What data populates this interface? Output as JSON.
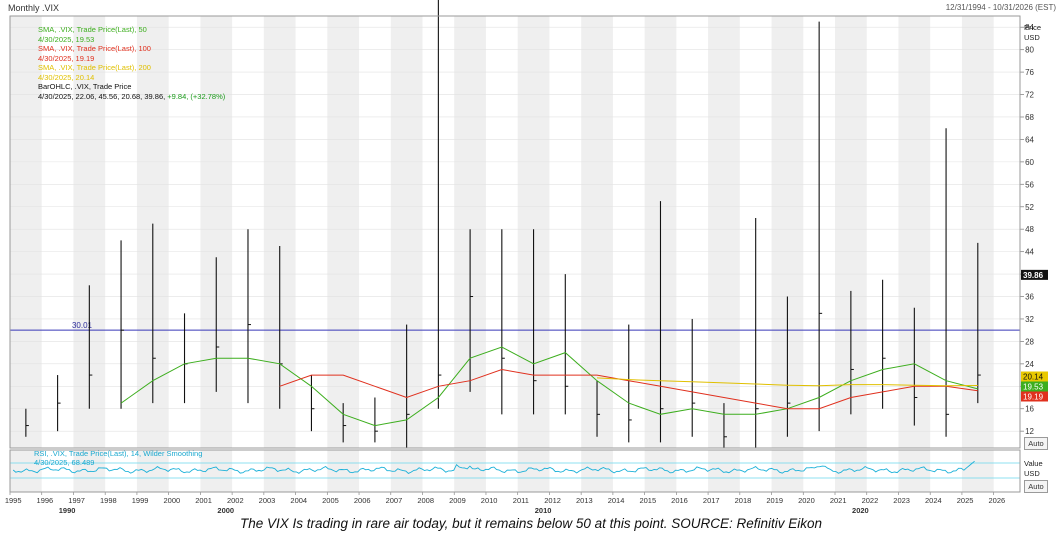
{
  "header": {
    "title": "Monthly .VIX",
    "date_range": "12/31/1994 - 10/31/2026 (EST)"
  },
  "legend": [
    {
      "label": "SMA, .VIX, Trade Price(Last),  50",
      "value": "4/30/2025, 19.53",
      "color": "#3dae1e"
    },
    {
      "label": "SMA, .VIX, Trade Price(Last),  100",
      "value": "4/30/2025, 19.19",
      "color": "#e0301e"
    },
    {
      "label": "SMA, .VIX, Trade Price(Last),  200",
      "value": "4/30/2025, 20.14",
      "color": "#e0c000"
    },
    {
      "label": "BarOHLC, .VIX, Trade Price",
      "value_main": "4/30/2025, 22.06, 45.56, 20.68, 39.86, ",
      "value_change": "+9.84, (+32.78%)",
      "color": "#111111"
    }
  ],
  "rsi_legend": {
    "label": "RSI, .VIX, Trade Price(Last),  14, Wilder Smoothing",
    "value": "4/30/2025, 68.489"
  },
  "price_axis": {
    "title": "Price",
    "unit": "USD",
    "ticks": [
      "84",
      "80",
      "76",
      "72",
      "68",
      "64",
      "60",
      "56",
      "52",
      "48",
      "44",
      "40",
      "36",
      "32",
      "28",
      "24",
      "20",
      "16",
      "12"
    ],
    "auto_label": "Auto"
  },
  "rsi_axis": {
    "title": "Value",
    "unit": "USD",
    "auto_label": "Auto"
  },
  "badges": {
    "last": "39.86",
    "sma200": "20.14",
    "sma50": "19.53",
    "sma100": "19.19"
  },
  "reference_line_label": "30.01",
  "x_axis": {
    "years": [
      "1995",
      "1996",
      "1997",
      "1998",
      "1999",
      "2000",
      "2001",
      "2002",
      "2003",
      "2004",
      "2005",
      "2006",
      "2007",
      "2008",
      "2009",
      "2010",
      "2011",
      "2012",
      "2013",
      "2014",
      "2015",
      "2016",
      "2017",
      "2018",
      "2019",
      "2020",
      "2021",
      "2022",
      "2023",
      "2024",
      "2025",
      "2026"
    ],
    "decades": [
      "1990",
      "2000",
      "2010",
      "2020"
    ]
  },
  "caption": "The VIX Is trading in rare air today, but it remains below 50 at this point. SOURCE: Refinitiv Eikon",
  "chart_data": {
    "type": "line",
    "title": "Monthly .VIX",
    "xlabel": "",
    "ylabel": "Price USD",
    "x": [
      1995,
      1996,
      1997,
      1998,
      1999,
      2000,
      2001,
      2002,
      2003,
      2004,
      2005,
      2006,
      2007,
      2008,
      2009,
      2010,
      2011,
      2012,
      2013,
      2014,
      2015,
      2016,
      2017,
      2018,
      2019,
      2020,
      2021,
      2022,
      2023,
      2024,
      2025
    ],
    "ylim": [
      9,
      86
    ],
    "xlim": [
      1995,
      2026.83
    ],
    "reference_line": 30.01,
    "series": [
      {
        "name": "BarOHLC, .VIX, Trade Price",
        "color": "#111111",
        "values": [
          13,
          17,
          22,
          30,
          25,
          24,
          27,
          31,
          24,
          16,
          13,
          12,
          15,
          22,
          36,
          25,
          21,
          20,
          15,
          14,
          16,
          17,
          11,
          16,
          17,
          33,
          23,
          25,
          18,
          15,
          22
        ],
        "highs": [
          16,
          22,
          38,
          46,
          49,
          33,
          43,
          48,
          45,
          22,
          17,
          18,
          31,
          89,
          48,
          48,
          48,
          40,
          21,
          31,
          53,
          32,
          17,
          50,
          36,
          85,
          37,
          39,
          34,
          66,
          45.56
        ],
        "lows": [
          11,
          12,
          16,
          16,
          17,
          17,
          19,
          17,
          16,
          12,
          10,
          10,
          9,
          16,
          19,
          15,
          15,
          15,
          11,
          10,
          10,
          11,
          9,
          9,
          11,
          12,
          15,
          16,
          13,
          11,
          17
        ],
        "last": {
          "date": "4/30/2025",
          "open": 22.06,
          "high": 45.56,
          "low": 20.68,
          "close": 39.86,
          "change": 9.84,
          "change_pct": 32.78
        }
      },
      {
        "name": "SMA, .VIX, Trade Price(Last),  50",
        "color": "#3dae1e",
        "values": [
          null,
          null,
          null,
          17,
          21,
          24,
          25,
          25,
          24,
          20,
          15,
          13,
          14,
          18,
          25,
          27,
          24,
          26,
          21,
          17,
          15,
          16,
          15,
          15,
          16,
          18,
          21,
          23,
          24,
          21,
          19.53
        ]
      },
      {
        "name": "SMA, .VIX, Trade Price(Last),  100",
        "color": "#e0301e",
        "values": [
          null,
          null,
          null,
          null,
          null,
          null,
          null,
          null,
          20,
          22,
          22,
          20,
          18,
          20,
          21,
          23,
          22,
          22,
          22,
          21,
          20,
          19,
          18,
          17,
          16,
          16,
          18,
          19,
          20,
          20,
          19.19
        ]
      },
      {
        "name": "SMA, .VIX, Trade Price(Last),  200",
        "color": "#e0c000",
        "values": [
          null,
          null,
          null,
          null,
          null,
          null,
          null,
          null,
          null,
          null,
          null,
          null,
          null,
          null,
          null,
          null,
          null,
          null,
          21.5,
          21.2,
          21,
          20.8,
          20.6,
          20.4,
          20.2,
          20.1,
          20.3,
          20.3,
          20.2,
          20.1,
          20.14
        ]
      }
    ],
    "rsi": {
      "name": "RSI, .VIX, Trade Price(Last),  14, Wilder Smoothing",
      "last": 68.489,
      "date": "4/30/2025"
    }
  }
}
